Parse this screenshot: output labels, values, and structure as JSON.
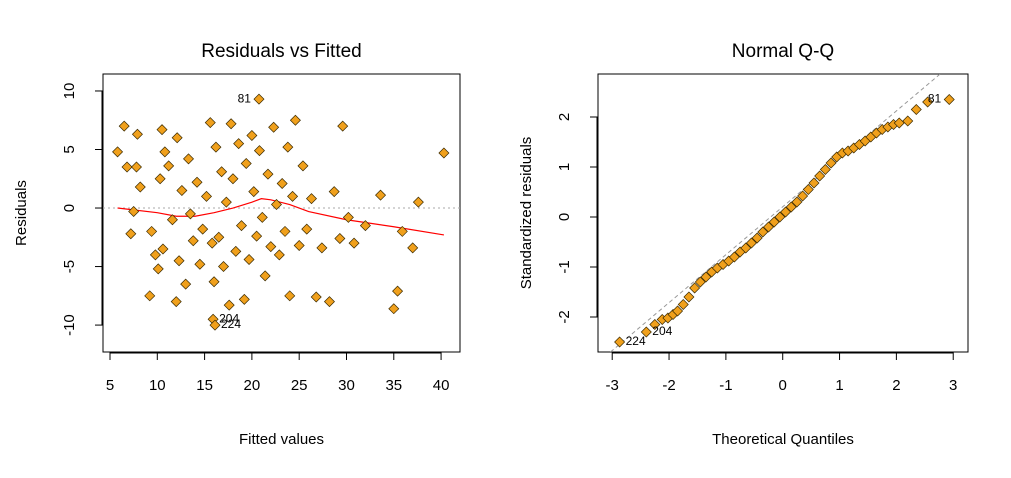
{
  "chart_data": [
    {
      "type": "scatter",
      "title": "Residuals vs Fitted",
      "xlabel": "Fitted values",
      "ylabel": "Residuals",
      "xlim": [
        4.26,
        42
      ],
      "ylim": [
        -12.3,
        11.45
      ],
      "xticks": [
        5,
        10,
        15,
        20,
        25,
        30,
        35,
        40
      ],
      "yticks": [
        -10,
        -5,
        0,
        5,
        10
      ],
      "series": [
        {
          "color": "#f0a01c",
          "x": [
            5.8,
            6.5,
            6.8,
            7.2,
            7.5,
            7.9,
            7.8,
            8.2,
            9.2,
            9.4,
            9.8,
            10.1,
            10.3,
            10.5,
            10.6,
            10.8,
            11.2,
            11.6,
            12.0,
            12.1,
            12.3,
            12.6,
            13.0,
            13.3,
            13.5,
            13.8,
            14.2,
            14.5,
            14.8,
            15.2,
            15.6,
            15.8,
            16.0,
            16.2,
            16.5,
            16.8,
            17.0,
            17.3,
            17.6,
            17.8,
            18.0,
            18.3,
            18.6,
            18.9,
            19.2,
            19.4,
            19.7,
            20.0,
            20.2,
            20.5,
            20.8,
            21.1,
            21.4,
            21.7,
            22.0,
            22.3,
            22.6,
            22.9,
            23.2,
            23.5,
            23.8,
            24.0,
            24.3,
            24.6,
            25.0,
            25.4,
            25.8,
            26.3,
            26.8,
            27.4,
            28.2,
            28.7,
            29.3,
            29.6,
            30.2,
            30.8,
            32.0,
            33.6,
            35.0,
            35.4,
            35.9,
            37.0,
            37.6,
            40.3
          ],
          "values": [
            4.8,
            7,
            3.5,
            -2.2,
            -0.3,
            6.3,
            3.5,
            1.8,
            -7.5,
            -2,
            -4,
            -5.2,
            2.5,
            6.7,
            -3.5,
            4.8,
            3.6,
            -1,
            -8,
            6,
            -4.5,
            1.5,
            -6.5,
            4.2,
            -0.5,
            -2.8,
            2.2,
            -4.8,
            -1.8,
            1,
            7.3,
            -3,
            -6.3,
            5.2,
            -2.5,
            3.1,
            -5,
            0.5,
            -8.3,
            7.2,
            2.5,
            -3.7,
            5.5,
            -1.5,
            -7.8,
            3.8,
            -4.4,
            6.2,
            1.4,
            -2.4,
            4.9,
            -0.8,
            -5.8,
            2.9,
            -3.3,
            6.9,
            0.3,
            -4,
            2.1,
            -2,
            5.2,
            -7.5,
            1,
            7.5,
            -3.2,
            3.6,
            -1.8,
            0.8,
            -7.6,
            -3.4,
            -8,
            1.4,
            -2.6,
            7,
            -0.8,
            -3,
            -1.5,
            1.1,
            -8.6,
            -7.1,
            -2,
            -3.4,
            0.5,
            4.7
          ]
        },
        {
          "color": "#f0a01c",
          "x": [
            20.75,
            15.9,
            16.1
          ],
          "values": [
            9.3,
            -9.5,
            -10.0
          ],
          "labels": [
            "81",
            "204",
            "224"
          ]
        }
      ],
      "smooth": {
        "color": "#ff0000",
        "x": [
          5.8,
          10,
          12,
          14,
          16,
          18,
          20,
          21,
          22,
          24,
          26,
          30,
          35,
          40.3
        ],
        "values": [
          0,
          -0.4,
          -0.7,
          -0.7,
          -0.4,
          0,
          0.5,
          0.8,
          0.7,
          0.3,
          -0.3,
          -1.0,
          -1.6,
          -2.3
        ]
      },
      "hline": 0
    },
    {
      "type": "scatter",
      "title": "Normal Q-Q",
      "xlabel": "Theoretical Quantiles",
      "ylabel": "Standardized residuals",
      "xlim": [
        -3.25,
        3.26
      ],
      "ylim": [
        -2.7,
        2.86
      ],
      "xticks": [
        -3,
        -2,
        -1,
        0,
        1,
        2,
        3
      ],
      "yticks": [
        -2,
        -1,
        0,
        1,
        2
      ],
      "series": [
        {
          "color": "#f0a01c",
          "x": [
            -2.25,
            -2.12,
            -2.02,
            -1.93,
            -1.85,
            -1.75,
            -1.65,
            -1.55,
            -1.45,
            -1.35,
            -1.25,
            -1.15,
            -1.05,
            -0.95,
            -0.85,
            -0.75,
            -0.65,
            -0.55,
            -0.45,
            -0.35,
            -0.25,
            -0.15,
            -0.05,
            0.05,
            0.15,
            0.25,
            0.35,
            0.45,
            0.55,
            0.65,
            0.75,
            0.85,
            0.95,
            1.05,
            1.15,
            1.25,
            1.35,
            1.45,
            1.55,
            1.65,
            1.75,
            1.85,
            1.95,
            2.05,
            2.2,
            2.35,
            2.55
          ],
          "values": [
            -2.15,
            -2.05,
            -2.02,
            -1.95,
            -1.88,
            -1.75,
            -1.6,
            -1.42,
            -1.3,
            -1.2,
            -1.1,
            -1.02,
            -0.95,
            -0.88,
            -0.8,
            -0.7,
            -0.62,
            -0.52,
            -0.42,
            -0.3,
            -0.2,
            -0.1,
            0.0,
            0.1,
            0.2,
            0.3,
            0.42,
            0.55,
            0.68,
            0.82,
            0.95,
            1.08,
            1.2,
            1.28,
            1.32,
            1.38,
            1.45,
            1.52,
            1.6,
            1.68,
            1.75,
            1.8,
            1.85,
            1.88,
            1.92,
            2.15,
            2.3
          ]
        },
        {
          "color": "#f0a01c",
          "x": [
            2.93,
            -2.4,
            -2.87
          ],
          "values": [
            2.35,
            -2.3,
            -2.5
          ],
          "labels": [
            "81",
            "204",
            "224"
          ]
        }
      ],
      "reference_line": {
        "color": "#999999",
        "x": [
          -3.03,
          2.77
        ],
        "values": [
          -2.7,
          2.86
        ]
      }
    }
  ]
}
